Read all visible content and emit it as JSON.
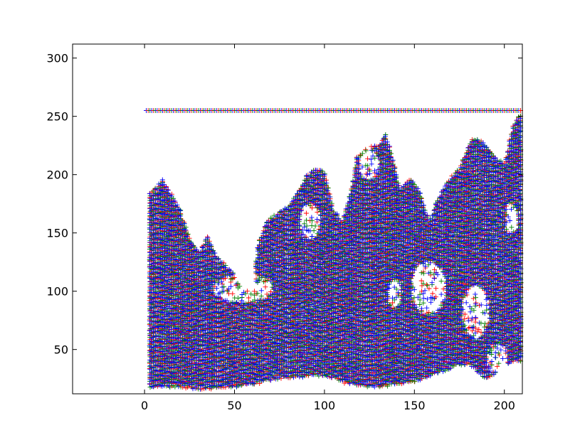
{
  "chart_data": {
    "type": "scatter",
    "marker": "+",
    "grid": false,
    "xlim": [
      -40,
      210
    ],
    "ylim": [
      12,
      312
    ],
    "x_ticks": [
      0,
      50,
      100,
      150,
      200
    ],
    "y_ticks": [
      50,
      100,
      150,
      200,
      250,
      300
    ],
    "x_tick_labels": [
      "0",
      "50",
      "100",
      "150",
      "200"
    ],
    "y_tick_labels": [
      "50",
      "100",
      "150",
      "200",
      "250",
      "300"
    ],
    "series_colors": [
      "#ff0000",
      "#008000",
      "#0000ff"
    ],
    "x_range": [
      1,
      209
    ],
    "saturation_line": {
      "y": 255,
      "x_start": 1,
      "x_end": 209
    },
    "upper_envelope": [
      [
        4,
        185
      ],
      [
        10,
        195
      ],
      [
        15,
        183
      ],
      [
        20,
        170
      ],
      [
        25,
        145
      ],
      [
        30,
        133
      ],
      [
        35,
        147
      ],
      [
        40,
        130
      ],
      [
        45,
        122
      ],
      [
        50,
        115
      ],
      [
        55,
        103
      ],
      [
        60,
        100
      ],
      [
        63,
        140
      ],
      [
        68,
        160
      ],
      [
        75,
        168
      ],
      [
        80,
        173
      ],
      [
        85,
        184
      ],
      [
        90,
        199
      ],
      [
        95,
        205
      ],
      [
        100,
        202
      ],
      [
        105,
        170
      ],
      [
        110,
        160
      ],
      [
        115,
        188
      ],
      [
        118,
        215
      ],
      [
        125,
        224
      ],
      [
        130,
        225
      ],
      [
        134,
        234
      ],
      [
        138,
        214
      ],
      [
        142,
        188
      ],
      [
        148,
        196
      ],
      [
        153,
        186
      ],
      [
        158,
        160
      ],
      [
        163,
        180
      ],
      [
        168,
        193
      ],
      [
        175,
        205
      ],
      [
        182,
        232
      ],
      [
        188,
        228
      ],
      [
        195,
        215
      ],
      [
        200,
        210
      ],
      [
        205,
        242
      ],
      [
        209,
        253
      ]
    ],
    "lower_envelope": [
      [
        4,
        18
      ],
      [
        10,
        18
      ],
      [
        20,
        18
      ],
      [
        30,
        16
      ],
      [
        40,
        17
      ],
      [
        50,
        18
      ],
      [
        60,
        20
      ],
      [
        70,
        24
      ],
      [
        80,
        26
      ],
      [
        90,
        27
      ],
      [
        100,
        28
      ],
      [
        110,
        22
      ],
      [
        120,
        19
      ],
      [
        130,
        18
      ],
      [
        140,
        20
      ],
      [
        150,
        22
      ],
      [
        160,
        28
      ],
      [
        170,
        34
      ],
      [
        180,
        38
      ],
      [
        190,
        24
      ],
      [
        195,
        30
      ],
      [
        200,
        38
      ],
      [
        209,
        40
      ]
    ],
    "voids": [
      [
        20,
        55,
        150,
        190,
        4
      ],
      [
        38,
        72,
        90,
        115,
        4
      ],
      [
        86,
        98,
        145,
        175,
        5
      ],
      [
        119,
        131,
        195,
        222,
        6
      ],
      [
        135,
        143,
        85,
        110,
        6
      ],
      [
        148,
        168,
        80,
        125,
        5
      ],
      [
        176,
        192,
        60,
        105,
        5
      ],
      [
        190,
        202,
        30,
        55,
        4
      ],
      [
        200,
        208,
        150,
        175,
        4
      ]
    ]
  }
}
